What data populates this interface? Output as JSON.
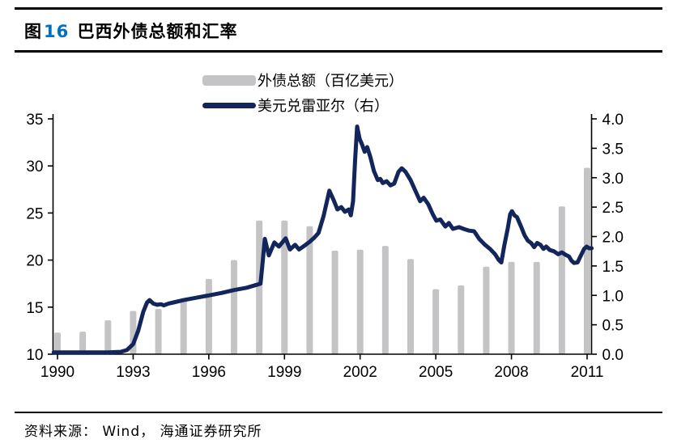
{
  "page": {
    "title_prefix": "图",
    "title_number": "16",
    "title_text": " 巴西外债总额和汇率",
    "source_text": "资料来源： Wind， 海通证券研究所"
  },
  "colors": {
    "bar": "#c4c4c6",
    "line": "#12265c",
    "axis": "#000000",
    "title_number_blue": "#0070c0"
  },
  "chart_data": {
    "type": "combo",
    "title": "图16 巴西外债总额和汇率",
    "grid": false,
    "legend_position": "top-center",
    "categories": [
      1990,
      1991,
      1992,
      1993,
      1994,
      1995,
      1996,
      1997,
      1998,
      1999,
      2000,
      2001,
      2002,
      2003,
      2004,
      2005,
      2006,
      2007,
      2008,
      2009,
      2010,
      2011
    ],
    "series": [
      {
        "name": "外债总额（百亿美元）",
        "type": "bar",
        "axis": "left",
        "color": "#c4c4c6",
        "values": [
          12.3,
          12.4,
          13.6,
          14.6,
          14.8,
          15.9,
          18.0,
          20.0,
          24.2,
          24.2,
          23.6,
          21.0,
          21.1,
          21.5,
          20.1,
          16.9,
          17.3,
          19.3,
          19.8,
          19.8,
          25.7,
          29.8
        ]
      },
      {
        "name": "美元兑雷亚尔（右）",
        "type": "line",
        "axis": "right",
        "color": "#12265c",
        "points": [
          [
            1989.85,
            0.03
          ],
          [
            1991.0,
            0.03
          ],
          [
            1992.0,
            0.03
          ],
          [
            1992.5,
            0.04
          ],
          [
            1992.75,
            0.07
          ],
          [
            1993.0,
            0.17
          ],
          [
            1993.2,
            0.4
          ],
          [
            1993.4,
            0.72
          ],
          [
            1993.55,
            0.88
          ],
          [
            1993.65,
            0.92
          ],
          [
            1993.8,
            0.86
          ],
          [
            1993.95,
            0.84
          ],
          [
            1994.1,
            0.85
          ],
          [
            1994.22,
            0.83
          ],
          [
            1994.4,
            0.86
          ],
          [
            1994.6,
            0.88
          ],
          [
            1995.0,
            0.92
          ],
          [
            1995.5,
            0.96
          ],
          [
            1996.0,
            1.0
          ],
          [
            1996.5,
            1.04
          ],
          [
            1997.0,
            1.09
          ],
          [
            1997.5,
            1.13
          ],
          [
            1997.9,
            1.18
          ],
          [
            1998.05,
            1.2
          ],
          [
            1998.12,
            1.5
          ],
          [
            1998.22,
            1.96
          ],
          [
            1998.38,
            1.68
          ],
          [
            1998.6,
            1.9
          ],
          [
            1998.78,
            1.83
          ],
          [
            1999.05,
            1.97
          ],
          [
            1999.22,
            1.78
          ],
          [
            1999.42,
            1.86
          ],
          [
            1999.58,
            1.78
          ],
          [
            1999.78,
            1.84
          ],
          [
            2000.0,
            1.91
          ],
          [
            2000.18,
            1.98
          ],
          [
            2000.35,
            2.06
          ],
          [
            2000.55,
            2.35
          ],
          [
            2000.78,
            2.78
          ],
          [
            2000.95,
            2.62
          ],
          [
            2001.1,
            2.46
          ],
          [
            2001.25,
            2.5
          ],
          [
            2001.4,
            2.42
          ],
          [
            2001.55,
            2.46
          ],
          [
            2001.63,
            2.36
          ],
          [
            2001.72,
            2.6
          ],
          [
            2001.8,
            3.3
          ],
          [
            2001.88,
            3.87
          ],
          [
            2001.98,
            3.66
          ],
          [
            2002.08,
            3.56
          ],
          [
            2002.18,
            3.44
          ],
          [
            2002.28,
            3.52
          ],
          [
            2002.4,
            3.36
          ],
          [
            2002.55,
            3.11
          ],
          [
            2002.7,
            2.96
          ],
          [
            2002.8,
            2.98
          ],
          [
            2002.9,
            2.91
          ],
          [
            2003.05,
            2.94
          ],
          [
            2003.2,
            2.87
          ],
          [
            2003.35,
            2.9
          ],
          [
            2003.52,
            3.1
          ],
          [
            2003.65,
            3.16
          ],
          [
            2003.8,
            3.1
          ],
          [
            2004.0,
            2.96
          ],
          [
            2004.2,
            2.77
          ],
          [
            2004.38,
            2.6
          ],
          [
            2004.52,
            2.66
          ],
          [
            2004.7,
            2.55
          ],
          [
            2004.88,
            2.38
          ],
          [
            2005.02,
            2.27
          ],
          [
            2005.18,
            2.29
          ],
          [
            2005.38,
            2.17
          ],
          [
            2005.52,
            2.23
          ],
          [
            2005.68,
            2.13
          ],
          [
            2005.92,
            2.16
          ],
          [
            2006.1,
            2.13
          ],
          [
            2006.32,
            2.1
          ],
          [
            2006.52,
            2.09
          ],
          [
            2006.72,
            1.96
          ],
          [
            2006.95,
            1.86
          ],
          [
            2007.15,
            1.79
          ],
          [
            2007.35,
            1.7
          ],
          [
            2007.5,
            1.6
          ],
          [
            2007.6,
            1.56
          ],
          [
            2007.72,
            1.86
          ],
          [
            2007.85,
            2.13
          ],
          [
            2007.95,
            2.38
          ],
          [
            2008.02,
            2.43
          ],
          [
            2008.12,
            2.36
          ],
          [
            2008.22,
            2.33
          ],
          [
            2008.38,
            2.17
          ],
          [
            2008.52,
            2.02
          ],
          [
            2008.65,
            1.93
          ],
          [
            2008.78,
            1.89
          ],
          [
            2008.9,
            1.82
          ],
          [
            2009.02,
            1.89
          ],
          [
            2009.15,
            1.86
          ],
          [
            2009.27,
            1.79
          ],
          [
            2009.38,
            1.83
          ],
          [
            2009.52,
            1.77
          ],
          [
            2009.68,
            1.75
          ],
          [
            2009.85,
            1.7
          ],
          [
            2010.0,
            1.73
          ],
          [
            2010.15,
            1.69
          ],
          [
            2010.28,
            1.66
          ],
          [
            2010.38,
            1.59
          ],
          [
            2010.48,
            1.55
          ],
          [
            2010.62,
            1.56
          ],
          [
            2010.78,
            1.7
          ],
          [
            2010.88,
            1.79
          ],
          [
            2010.98,
            1.83
          ],
          [
            2011.08,
            1.8
          ],
          [
            2011.18,
            1.8
          ]
        ]
      }
    ],
    "left_axis": {
      "min": 10,
      "max": 35,
      "ticks": [
        "35",
        "30",
        "25",
        "20",
        "15",
        "10"
      ]
    },
    "right_axis": {
      "min": 0.0,
      "max": 4.0,
      "ticks": [
        "4.0",
        "3.5",
        "3.0",
        "2.5",
        "2.0",
        "1.5",
        "1.0",
        "0.5",
        "0.0"
      ]
    },
    "x_axis": {
      "start": 1990,
      "end": 2011,
      "tick_years": [
        1990,
        1993,
        1996,
        1999,
        2002,
        2005,
        2008,
        2011
      ]
    }
  }
}
